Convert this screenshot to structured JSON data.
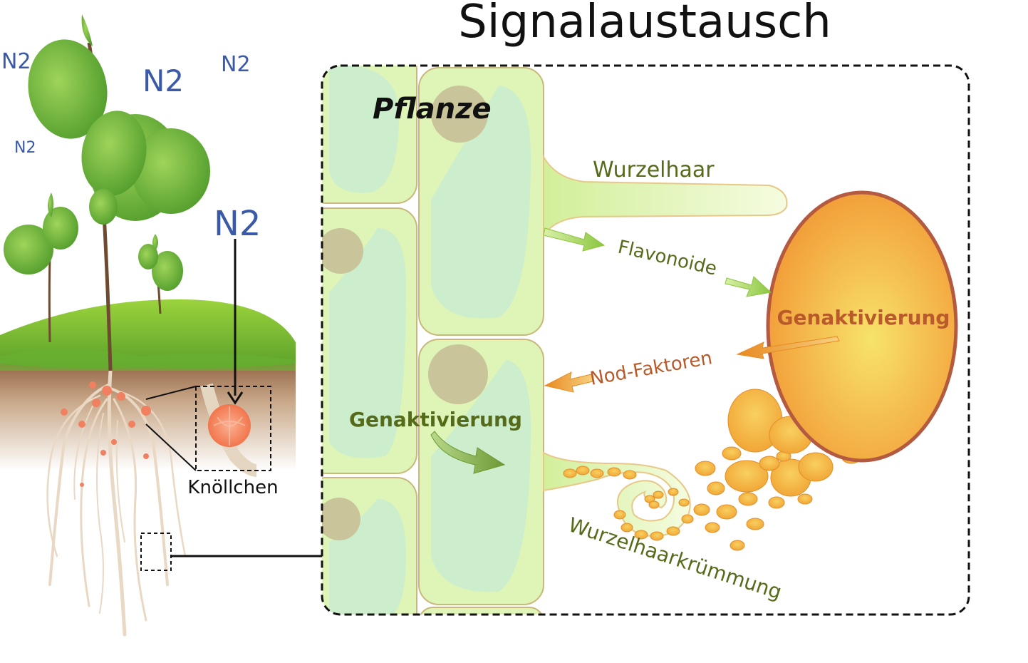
{
  "title": "Signalaustausch",
  "left_panel": {
    "n2_labels": [
      "N2",
      "N2",
      "N2",
      "N2",
      "N2"
    ],
    "nodule_label": "Knöllchen"
  },
  "detail_panel": {
    "plant_label": "Pflanze",
    "root_hair_label": "Wurzelhaar",
    "flavonoids_label": "Flavonoide",
    "nod_factors_label": "Nod-Faktoren",
    "gene_activation_bacterium": "Genaktivierung",
    "gene_activation_plant": "Genaktivierung",
    "root_hair_curling_label": "Wurzelhaarkrümmung"
  },
  "colors": {
    "n2_blue": "#3a5aa8",
    "cell_green": "#dff5b8",
    "bacterium_orange": "#f5a53a",
    "signal_green": "#8cc63f",
    "signal_orange": "#f0a030",
    "label_green": "#556b1a",
    "label_brown": "#b85a2a"
  }
}
